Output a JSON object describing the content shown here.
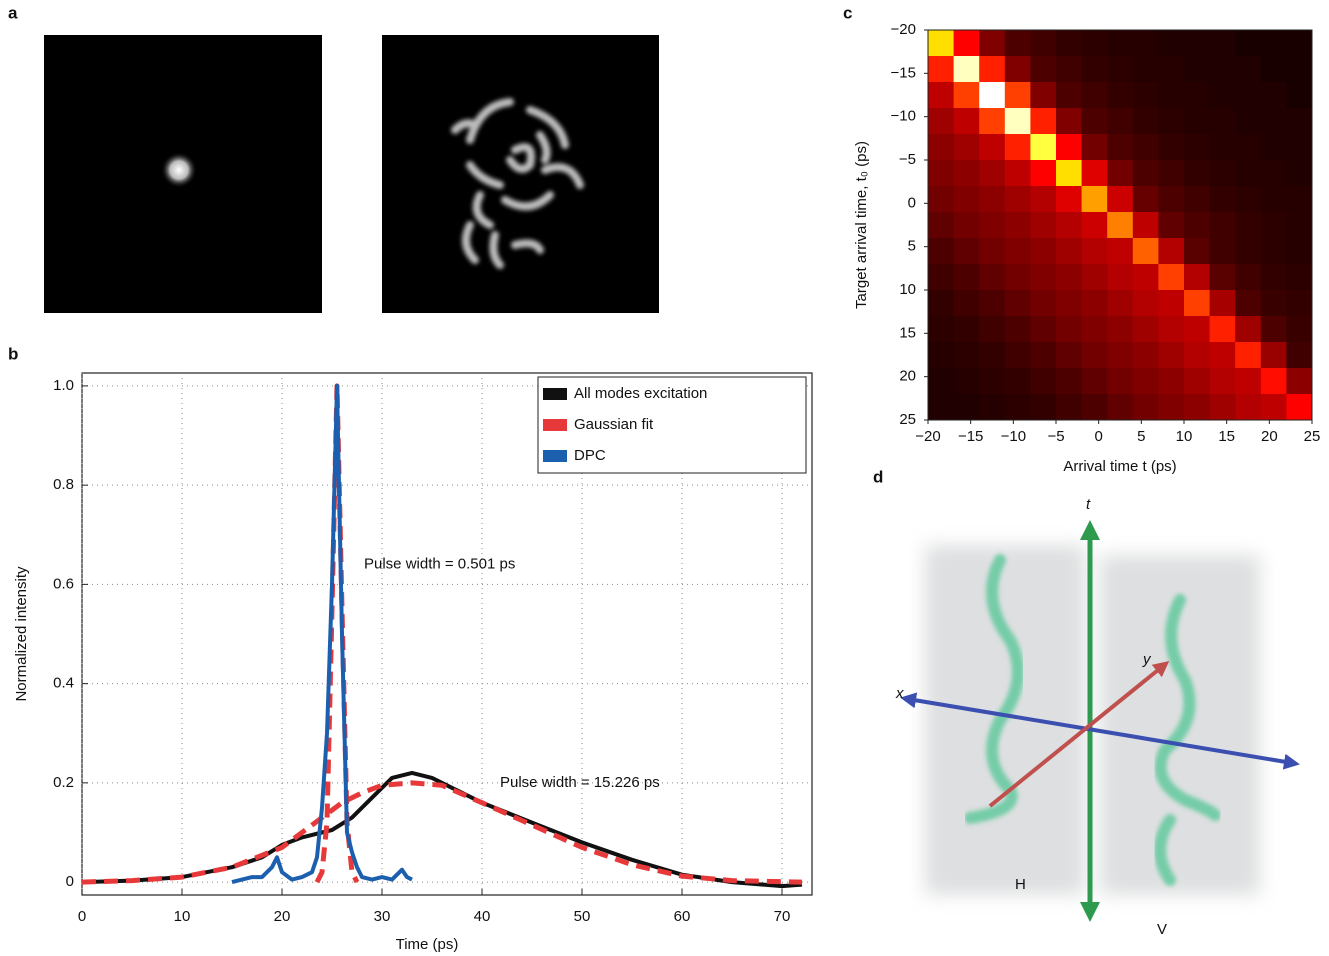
{
  "panel_labels": [
    "a",
    "b",
    "c",
    "d"
  ],
  "chart_data": [
    {
      "type": "line",
      "x_label": "Time (ps)",
      "y_label": "Normalized intensity",
      "xlim": [
        0,
        73
      ],
      "ylim": [
        -0.026,
        1.026
      ],
      "xticks": [
        0,
        10,
        20,
        30,
        40,
        50,
        60,
        70
      ],
      "yticks": [
        0,
        0.2,
        0.4,
        0.6,
        0.8,
        {
          "value": 1,
          "label": "1.0"
        }
      ],
      "grid": true,
      "legend": "upper right",
      "series": [
        {
          "name": "All modes excitation",
          "color": "#111111",
          "style": "solid",
          "x": [
            0,
            5,
            10,
            15,
            18,
            20,
            22,
            25,
            27,
            29,
            31,
            33,
            35,
            38,
            40,
            45,
            50,
            55,
            60,
            65,
            70,
            72
          ],
          "values": [
            0,
            0.003,
            0.01,
            0.03,
            0.05,
            0.075,
            0.09,
            0.105,
            0.13,
            0.17,
            0.21,
            0.22,
            0.21,
            0.18,
            0.16,
            0.12,
            0.08,
            0.045,
            0.015,
            0,
            -0.008,
            -0.005
          ]
        },
        {
          "name": "Gaussian fit",
          "color": "#e8393a",
          "style": "dashed",
          "x": [
            0,
            5,
            10,
            15,
            20,
            22,
            24,
            26,
            28,
            30,
            33,
            36,
            40,
            45,
            50,
            55,
            60,
            65,
            72,
            72,
            23.5,
            24,
            24.5,
            25,
            25.5,
            26,
            26.5,
            27,
            27.5
          ],
          "values": [
            0,
            0.003,
            0.01,
            0.03,
            0.07,
            0.1,
            0.13,
            0.16,
            0.18,
            0.195,
            0.2,
            0.195,
            0.16,
            0.115,
            0.07,
            0.035,
            0.012,
            0.003,
            0,
            null,
            0,
            0.02,
            0.12,
            0.55,
            1.0,
            0.55,
            0.12,
            0.02,
            0
          ]
        },
        {
          "name": "DPC",
          "color": "#1c5fae",
          "style": "solid",
          "x": [
            15,
            16,
            17,
            18,
            19,
            19.5,
            20,
            21,
            22,
            23,
            23.5,
            24,
            24.5,
            25,
            25.5,
            26,
            26.5,
            27,
            27.5,
            28,
            29,
            30,
            31,
            32,
            32.5,
            33
          ],
          "values": [
            0,
            0.005,
            0.01,
            0.01,
            0.03,
            0.05,
            0.02,
            0.005,
            0.01,
            0.02,
            0.05,
            0.15,
            0.3,
            0.6,
            1.0,
            0.5,
            0.1,
            0.06,
            0.03,
            0.01,
            0.005,
            0.01,
            0.005,
            0.025,
            0.01,
            0.005
          ]
        }
      ],
      "annotations": [
        "Pulse width = 0.501 ps",
        "Pulse width = 15.226 ps"
      ]
    },
    {
      "type": "heatmap",
      "x_label": "Arrival time t (ps)",
      "y_label": "Target arrival time, t₀ (ps)",
      "colormap": "hot",
      "yreverse": true,
      "xlim": [
        -20,
        25
      ],
      "ylim": [
        -20,
        25
      ],
      "xticks": [
        {
          "value": -20,
          "label": "−20"
        },
        {
          "value": -15,
          "label": "−15"
        },
        {
          "value": -10,
          "label": "−10"
        },
        {
          "value": -5,
          "label": "−5"
        },
        0,
        5,
        10,
        15,
        20,
        25
      ],
      "yticks": [
        {
          "value": -20,
          "label": "−20"
        },
        {
          "value": -15,
          "label": "−15"
        },
        {
          "value": -10,
          "label": "−10"
        },
        {
          "value": -5,
          "label": "−5"
        },
        0,
        5,
        10,
        15,
        20,
        25
      ],
      "x": [
        -18.5,
        -15.5,
        -12.5,
        -9.5,
        -6.5,
        -3.5,
        -0.5,
        2.5,
        5.5,
        8.5,
        11.5,
        14.5,
        17.5,
        20.5,
        23.5
      ],
      "y": [
        -18.5,
        -15.5,
        -12.5,
        -9.5,
        -6.5,
        -3.5,
        -0.5,
        2.5,
        5.5,
        8.5,
        11.5,
        14.5,
        17.5,
        20.5,
        23.5
      ],
      "values": [
        [
          0.75,
          0.4,
          0.2,
          0.12,
          0.1,
          0.08,
          0.07,
          0.06,
          0.06,
          0.05,
          0.05,
          0.05,
          0.04,
          0.04,
          0.04
        ],
        [
          0.45,
          0.95,
          0.45,
          0.2,
          0.12,
          0.1,
          0.08,
          0.07,
          0.06,
          0.06,
          0.05,
          0.05,
          0.05,
          0.04,
          0.04
        ],
        [
          0.3,
          0.5,
          1.0,
          0.5,
          0.2,
          0.12,
          0.1,
          0.08,
          0.07,
          0.06,
          0.06,
          0.05,
          0.05,
          0.05,
          0.04
        ],
        [
          0.25,
          0.3,
          0.5,
          0.95,
          0.45,
          0.2,
          0.12,
          0.1,
          0.08,
          0.07,
          0.06,
          0.06,
          0.05,
          0.05,
          0.05
        ],
        [
          0.22,
          0.25,
          0.3,
          0.45,
          0.85,
          0.4,
          0.18,
          0.12,
          0.1,
          0.08,
          0.07,
          0.06,
          0.06,
          0.05,
          0.05
        ],
        [
          0.2,
          0.22,
          0.25,
          0.3,
          0.4,
          0.75,
          0.35,
          0.18,
          0.12,
          0.1,
          0.08,
          0.07,
          0.06,
          0.06,
          0.05
        ],
        [
          0.18,
          0.2,
          0.22,
          0.25,
          0.28,
          0.35,
          0.65,
          0.32,
          0.16,
          0.12,
          0.1,
          0.08,
          0.07,
          0.06,
          0.06
        ],
        [
          0.15,
          0.18,
          0.2,
          0.22,
          0.25,
          0.28,
          0.32,
          0.6,
          0.3,
          0.15,
          0.12,
          0.1,
          0.08,
          0.07,
          0.06
        ],
        [
          0.12,
          0.15,
          0.18,
          0.2,
          0.22,
          0.25,
          0.28,
          0.3,
          0.55,
          0.28,
          0.14,
          0.1,
          0.08,
          0.07,
          0.06
        ],
        [
          0.1,
          0.12,
          0.15,
          0.18,
          0.2,
          0.22,
          0.25,
          0.28,
          0.3,
          0.5,
          0.28,
          0.14,
          0.1,
          0.08,
          0.07
        ],
        [
          0.08,
          0.1,
          0.12,
          0.15,
          0.18,
          0.2,
          0.22,
          0.25,
          0.28,
          0.3,
          0.5,
          0.26,
          0.12,
          0.09,
          0.08
        ],
        [
          0.07,
          0.08,
          0.1,
          0.12,
          0.15,
          0.18,
          0.2,
          0.22,
          0.25,
          0.28,
          0.3,
          0.45,
          0.25,
          0.12,
          0.09
        ],
        [
          0.06,
          0.07,
          0.08,
          0.1,
          0.12,
          0.15,
          0.18,
          0.2,
          0.22,
          0.25,
          0.28,
          0.3,
          0.45,
          0.24,
          0.1
        ],
        [
          0.05,
          0.06,
          0.07,
          0.08,
          0.1,
          0.12,
          0.15,
          0.18,
          0.2,
          0.22,
          0.25,
          0.28,
          0.3,
          0.42,
          0.22
        ],
        [
          0.05,
          0.05,
          0.06,
          0.07,
          0.08,
          0.1,
          0.12,
          0.15,
          0.18,
          0.2,
          0.22,
          0.25,
          0.28,
          0.3,
          0.4
        ]
      ]
    }
  ],
  "diagram": {
    "axes": [
      "x",
      "y",
      "t"
    ],
    "polarizations": [
      "H",
      "V"
    ]
  }
}
